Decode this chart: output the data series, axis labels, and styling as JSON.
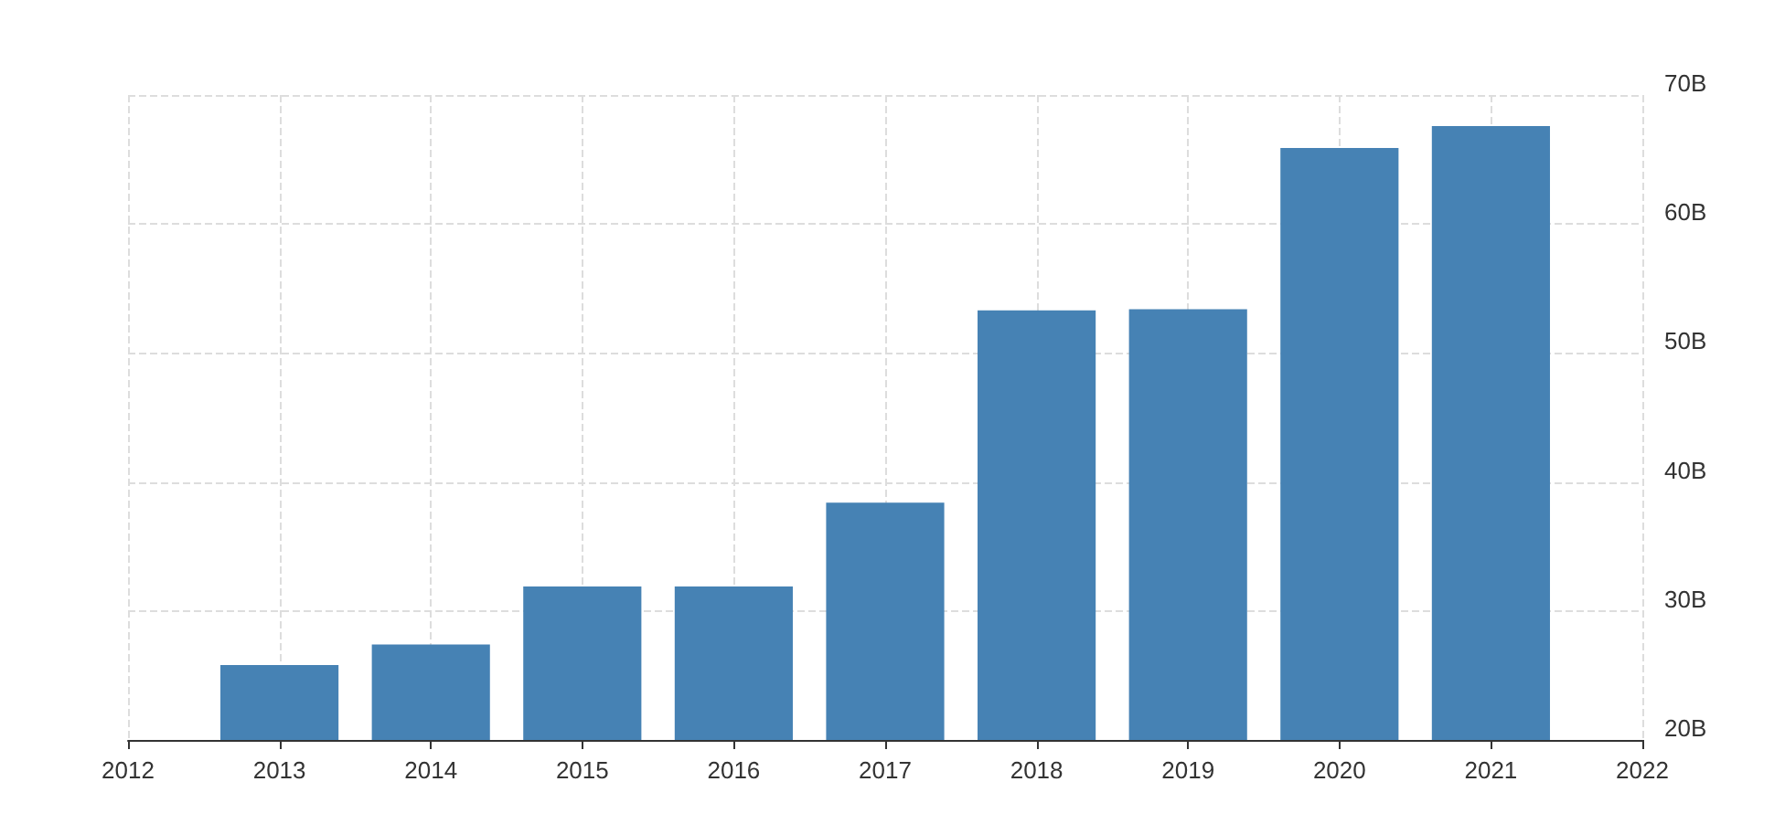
{
  "chart_data": {
    "type": "bar",
    "x": [
      2013,
      2014,
      2015,
      2016,
      2017,
      2018,
      2019,
      2020,
      2021
    ],
    "values": [
      25.8,
      27.4,
      31.9,
      31.9,
      38.4,
      53.3,
      53.4,
      65.9,
      67.6
    ],
    "color": "#4682b4",
    "xlim": [
      2012,
      2022
    ],
    "xticks": [
      2012,
      2013,
      2014,
      2015,
      2016,
      2017,
      2018,
      2019,
      2020,
      2021,
      2022
    ],
    "ylim": [
      20,
      70
    ],
    "yticks": [
      {
        "value": 20,
        "label": "20B"
      },
      {
        "value": 30,
        "label": "30B"
      },
      {
        "value": 40,
        "label": "40B"
      },
      {
        "value": 50,
        "label": "50B"
      },
      {
        "value": 60,
        "label": "60B"
      },
      {
        "value": 70,
        "label": "70B"
      }
    ],
    "grid": true
  }
}
